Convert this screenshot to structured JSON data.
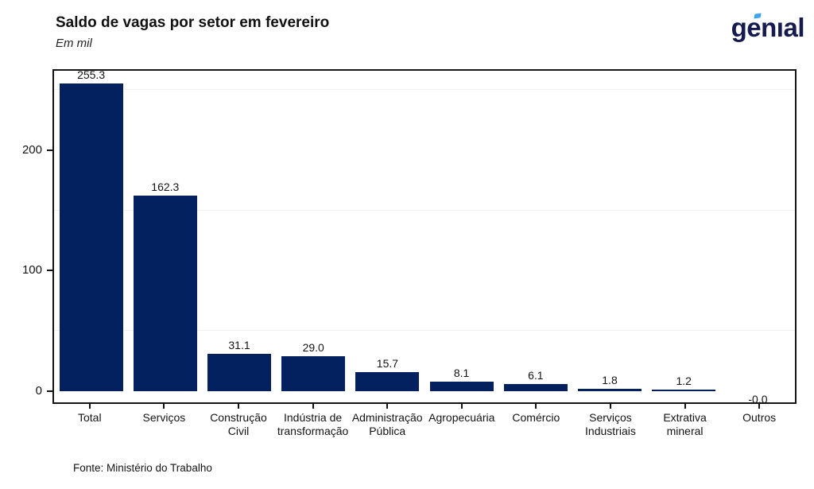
{
  "header": {
    "title": "Saldo de vagas por setor em fevereiro",
    "subtitle": "Em mil",
    "logo_text": "genıal"
  },
  "footer": {
    "source": "Fonte: Ministério do Trabalho"
  },
  "theme": {
    "bar_color": "#02215e",
    "axis_color": "#141414",
    "grid_color": "#f0f0f0",
    "logo_navy": "#151b4e",
    "logo_accent_blue": "#3ea4f4",
    "background": "#ffffff"
  },
  "chart_data": {
    "type": "bar",
    "title": "Saldo de vagas por setor em fevereiro",
    "subtitle": "Em mil",
    "unit": "mil",
    "categories": [
      "Total",
      "Serviços",
      "Construção\nCivil",
      "Indústria de\ntransformação",
      "Administração\nPública",
      "Agropecuária",
      "Comércio",
      "Serviços\nIndustriais",
      "Extrativa\nmineral",
      "Outros"
    ],
    "values": [
      255.3,
      162.3,
      31.1,
      29.0,
      15.7,
      8.1,
      6.1,
      1.8,
      1.2,
      -0.0
    ],
    "value_labels": [
      "255.3",
      "162.3",
      "31.1",
      "29.0",
      "15.7",
      "8.1",
      "6.1",
      "1.8",
      "1.2",
      "-0.0"
    ],
    "xlabel": "",
    "ylabel": "",
    "ylim": [
      0,
      266
    ],
    "yticks": [
      0,
      100,
      200
    ],
    "minor_gridlines": [
      50,
      150,
      250
    ],
    "grid": "minor-horizontal-only",
    "legend": "none",
    "source": "Fonte: Ministério do Trabalho"
  }
}
